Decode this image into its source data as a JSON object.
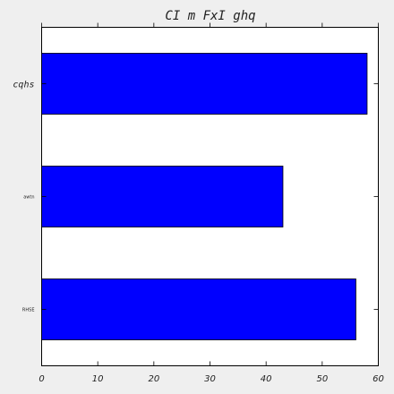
{
  "chart_data": {
    "type": "bar",
    "orientation": "horizontal",
    "title": "CI m FxI ghq",
    "categories": [
      "cqhs",
      "awtn",
      "RHSE"
    ],
    "values": [
      58,
      43,
      56
    ],
    "xlim": [
      0,
      60
    ],
    "xticks": [
      "0",
      "10",
      "20",
      "30",
      "40",
      "50",
      "60"
    ],
    "xlabel": "",
    "ylabel": "",
    "grid": false,
    "legend": "none",
    "bar_color": "#0000ff",
    "bar_edge_color": "#000000",
    "background_color": "#ffffff",
    "figure_color": "#efefef"
  }
}
